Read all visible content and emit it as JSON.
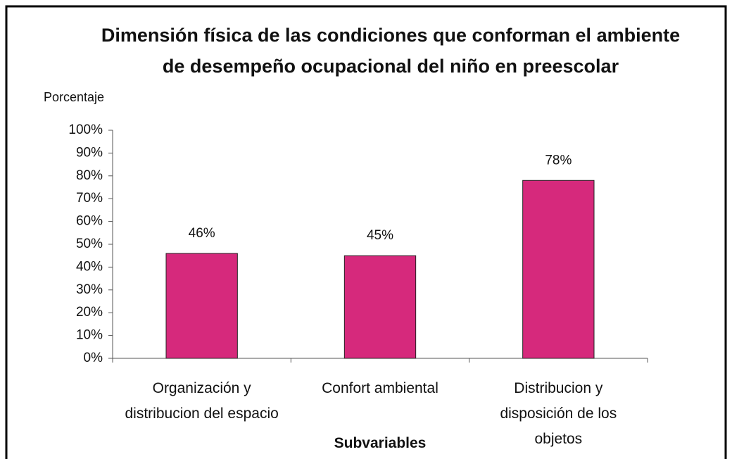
{
  "chart_data": {
    "type": "bar",
    "title": "Dimensión física de las condiciones que conforman el ambiente de desempeño ocupacional del niño en preescolar",
    "y_label": "Porcentaje",
    "x_label": "Subvariables",
    "categories": [
      "Organización y distribucion del espacio",
      "Confort ambiental",
      "Distribucion y disposición de los objetos"
    ],
    "values": [
      46,
      45,
      78
    ],
    "value_labels": [
      "46%",
      "45%",
      "78%"
    ],
    "color": "#d6297c",
    "ylim": [
      0,
      100
    ],
    "yticks": [
      {
        "value": 0,
        "label": "0%"
      },
      {
        "value": 10,
        "label": "10%"
      },
      {
        "value": 20,
        "label": "20%"
      },
      {
        "value": 30,
        "label": "30%"
      },
      {
        "value": 40,
        "label": "40%"
      },
      {
        "value": 50,
        "label": "50%"
      },
      {
        "value": 60,
        "label": "60%"
      },
      {
        "value": 70,
        "label": "70%"
      },
      {
        "value": 80,
        "label": "80%"
      },
      {
        "value": 90,
        "label": "90%"
      },
      {
        "value": 100,
        "label": "100%"
      }
    ],
    "grid": false
  }
}
